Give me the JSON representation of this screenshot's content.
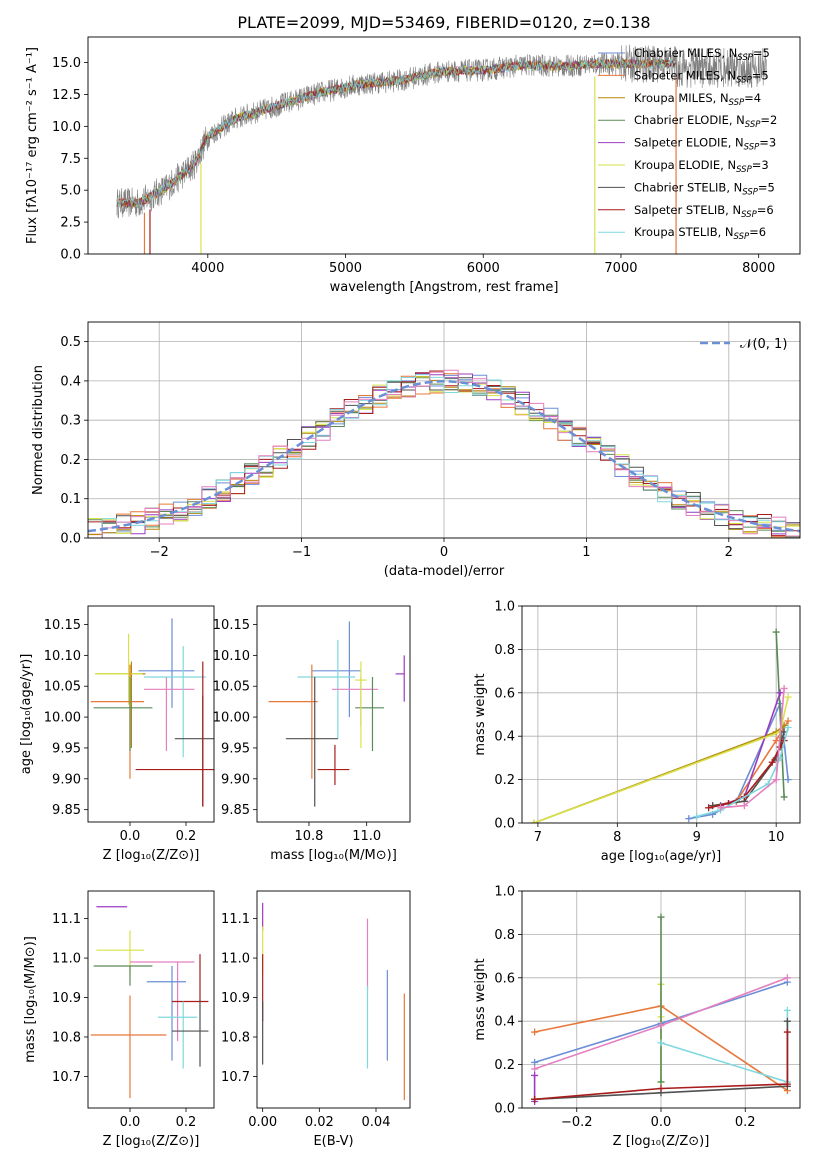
{
  "colors": {
    "Chabrier MILES": "#6a8fd6",
    "Salpeter MILES": "#e8773a",
    "Kroupa MILES": "#b5860a",
    "Chabrier ELODIE": "#5a8a56",
    "Salpeter ELODIE": "#9b3bc0",
    "Kroupa ELODIE": "#d7e24a",
    "Chabrier STELIB": "#505050",
    "Salpeter STELIB": "#a81c1c",
    "Kroupa STELIB": "#7fd8de",
    "pink": "#e47fc0",
    "gaussian": "#6a8fd6"
  },
  "chart_data": [
    {
      "id": "spectrum",
      "type": "line",
      "title": "PLATE=2099, MJD=53469, FIBERID=0120, z=0.138",
      "xlabel": "wavelength [Angstrom, rest frame]",
      "ylabel": "Flux [fλ10⁻¹⁷ erg cm⁻² s⁻¹ A⁻¹]",
      "xlim": [
        3130,
        8300
      ],
      "ylim": [
        0,
        17
      ],
      "xticks": [
        4000,
        5000,
        6000,
        7000,
        8000
      ],
      "yticks": [
        0.0,
        2.5,
        5.0,
        7.5,
        10.0,
        12.5,
        15.0
      ],
      "continuum": [
        [
          3340,
          4.0
        ],
        [
          3500,
          4.0
        ],
        [
          3700,
          5.2
        ],
        [
          3900,
          7.0
        ],
        [
          4000,
          9.2
        ],
        [
          4200,
          10.6
        ],
        [
          4500,
          11.6
        ],
        [
          4800,
          12.6
        ],
        [
          5100,
          13.3
        ],
        [
          5400,
          13.6
        ],
        [
          5700,
          14.3
        ],
        [
          6000,
          14.4
        ],
        [
          6300,
          14.8
        ],
        [
          6600,
          14.7
        ],
        [
          6800,
          14.9
        ],
        [
          7100,
          14.9
        ],
        [
          7400,
          14.9
        ]
      ],
      "legend_position": "top-right",
      "series": [
        {
          "name": "Chabrier MILES, N_SSP=5",
          "color_key": "Chabrier MILES"
        },
        {
          "name": "Salpeter MILES, N_SSP=5",
          "color_key": "Salpeter MILES"
        },
        {
          "name": "Kroupa MILES, N_SSP=4",
          "color_key": "Kroupa MILES"
        },
        {
          "name": "Chabrier ELODIE, N_SSP=2",
          "color_key": "Chabrier ELODIE"
        },
        {
          "name": "Salpeter ELODIE, N_SSP=3",
          "color_key": "Salpeter ELODIE"
        },
        {
          "name": "Kroupa ELODIE, N_SSP=3",
          "color_key": "Kroupa ELODIE"
        },
        {
          "name": "Chabrier STELIB, N_SSP=5",
          "color_key": "Chabrier STELIB"
        },
        {
          "name": "Salpeter STELIB, N_SSP=6",
          "color_key": "Salpeter STELIB"
        },
        {
          "name": "Kroupa STELIB, N_SSP=6",
          "color_key": "Kroupa STELIB"
        }
      ]
    },
    {
      "id": "residuals",
      "type": "histogram",
      "xlabel": "(data-model)/error",
      "ylabel": "Normed distribution",
      "xlim": [
        -2.5,
        2.5
      ],
      "ylim": [
        0,
        0.55
      ],
      "xticks": [
        -2,
        -1,
        0,
        1,
        2
      ],
      "yticks": [
        0.0,
        0.1,
        0.2,
        0.3,
        0.4,
        0.5
      ],
      "grid": true,
      "bin_width": 0.1,
      "gaussian_label": "𝒩(0, 1)",
      "legend_position": "top-right",
      "series_colors": [
        "Chabrier MILES",
        "Salpeter MILES",
        "Kroupa MILES",
        "Chabrier ELODIE",
        "Salpeter ELODIE",
        "Kroupa ELODIE",
        "Chabrier STELIB",
        "Salpeter STELIB",
        "Kroupa STELIB",
        "pink"
      ]
    },
    {
      "id": "age_vs_Z",
      "type": "errorbar",
      "xlabel": "Z [log₁₀(Z/Z⊙)]",
      "ylabel": "age  [log₁₀(age/yr)]",
      "xlim": [
        -0.15,
        0.3
      ],
      "ylim": [
        9.83,
        10.18
      ],
      "xticks": [
        0.0,
        0.2
      ],
      "yticks": [
        9.85,
        9.9,
        9.95,
        10.0,
        10.05,
        10.1,
        10.15
      ],
      "points": [
        {
          "c": "Chabrier MILES",
          "x": 0.15,
          "y": 10.075,
          "xerr": [
            0.12,
            0.08
          ],
          "yerr": [
            0.06,
            0.085
          ]
        },
        {
          "c": "Kroupa MILES",
          "x": 0.005,
          "y": 10.07,
          "xerr": [
            0.13,
            0.05
          ],
          "yerr": [
            0.12,
            0.02
          ]
        },
        {
          "c": "pink",
          "x": 0.13,
          "y": 10.045,
          "xerr": [
            0.08,
            0.1
          ],
          "yerr": [
            0.1,
            0.02
          ]
        },
        {
          "c": "Kroupa STELIB",
          "x": 0.19,
          "y": 10.065,
          "xerr": [
            0.14,
            0.08
          ],
          "yerr": [
            0.13,
            0.05
          ]
        },
        {
          "c": "Kroupa ELODIE",
          "x": -0.005,
          "y": 10.07,
          "xerr": [
            0.12,
            0.05
          ],
          "yerr": [
            0.05,
            0.065
          ]
        },
        {
          "c": "Salpeter MILES",
          "x": 0.0,
          "y": 10.025,
          "xerr": [
            0.14,
            0.05
          ],
          "yerr": [
            0.125,
            0.06
          ]
        },
        {
          "c": "Chabrier ELODIE",
          "x": 0.0,
          "y": 10.015,
          "xerr": [
            0.13,
            0.08
          ],
          "yerr": [
            0.07,
            0.05
          ]
        },
        {
          "c": "Chabrier STELIB",
          "x": 0.26,
          "y": 9.965,
          "xerr": [
            0.1,
            0.06
          ],
          "yerr": [
            0.11,
            0.07
          ]
        },
        {
          "c": "Salpeter STELIB",
          "x": 0.26,
          "y": 9.915,
          "xerr": [
            0.24,
            0.1
          ],
          "yerr": [
            0.06,
            0.175
          ]
        }
      ]
    },
    {
      "id": "age_vs_mass",
      "type": "errorbar",
      "xlabel": "mass [log₁₀(M/M⊙)]",
      "ylabel": "",
      "xlim": [
        10.62,
        11.15
      ],
      "ylim": [
        9.83,
        10.18
      ],
      "xticks": [
        10.8,
        11.0
      ],
      "yticks": [
        9.85,
        9.9,
        9.95,
        10.0,
        10.05,
        10.1,
        10.15
      ],
      "points": [
        {
          "c": "Chabrier MILES",
          "x": 10.94,
          "y": 10.075,
          "xerr": [
            0.13,
            0.04
          ],
          "yerr": [
            0.075,
            0.08
          ]
        },
        {
          "c": "Kroupa STELIB",
          "x": 10.9,
          "y": 10.065,
          "xerr": [
            0.14,
            0.06
          ],
          "yerr": [
            0.1,
            0.06
          ]
        },
        {
          "c": "pink",
          "x": 10.98,
          "y": 10.045,
          "xerr": [
            0.1,
            0.06
          ],
          "yerr": [
            0.06,
            0.02
          ]
        },
        {
          "c": "Salpeter ELODIE",
          "x": 11.13,
          "y": 10.07,
          "xerr": [
            0.03,
            0.0
          ],
          "yerr": [
            0.045,
            0.03
          ]
        },
        {
          "c": "Salpeter MILES",
          "x": 10.81,
          "y": 10.025,
          "xerr": [
            0.15,
            0.02
          ],
          "yerr": [
            0.125,
            0.06
          ]
        },
        {
          "c": "Chabrier ELODIE",
          "x": 11.02,
          "y": 10.015,
          "xerr": [
            0.06,
            0.04
          ],
          "yerr": [
            0.07,
            0.05
          ]
        },
        {
          "c": "Chabrier STELIB",
          "x": 10.82,
          "y": 9.965,
          "xerr": [
            0.1,
            0.08
          ],
          "yerr": [
            0.11,
            0.1
          ]
        },
        {
          "c": "Salpeter STELIB",
          "x": 10.89,
          "y": 9.915,
          "xerr": [
            0.06,
            0.05
          ],
          "yerr": [
            0.025,
            0.04
          ]
        },
        {
          "c": "Kroupa ELODIE",
          "x": 10.98,
          "y": 10.06,
          "xerr": [
            0.02,
            0.02
          ],
          "yerr": [
            0.11,
            0.03
          ]
        }
      ]
    },
    {
      "id": "massweight_vs_age",
      "type": "line",
      "xlabel": "age  [log₁₀(age/yr)]",
      "ylabel": "mass weight",
      "xlim": [
        6.8,
        10.3
      ],
      "ylim": [
        0,
        1.0
      ],
      "xticks": [
        7,
        8,
        9,
        10
      ],
      "yticks": [
        0.0,
        0.2,
        0.4,
        0.6,
        0.8,
        1.0
      ],
      "grid": true,
      "series": [
        {
          "c": "Chabrier MILES",
          "x": [
            8.9,
            9.2,
            9.5,
            10.05,
            10.15
          ],
          "y": [
            0.02,
            0.04,
            0.1,
            0.55,
            0.2
          ]
        },
        {
          "c": "Salpeter MILES",
          "x": [
            9.2,
            9.5,
            10.0,
            10.15
          ],
          "y": [
            0.08,
            0.1,
            0.38,
            0.47
          ]
        },
        {
          "c": "Kroupa MILES",
          "x": [
            6.95,
            10.0,
            10.1
          ],
          "y": [
            0.0,
            0.42,
            0.45
          ]
        },
        {
          "c": "Chabrier ELODIE",
          "x": [
            10.0,
            10.1
          ],
          "y": [
            0.88,
            0.12
          ]
        },
        {
          "c": "Salpeter ELODIE",
          "x": [
            9.3,
            9.6,
            10.05
          ],
          "y": [
            0.08,
            0.12,
            0.6
          ]
        },
        {
          "c": "Kroupa ELODIE",
          "x": [
            6.95,
            10.05,
            10.15
          ],
          "y": [
            0.0,
            0.42,
            0.58
          ]
        },
        {
          "c": "Chabrier STELIB",
          "x": [
            9.2,
            9.4,
            9.6,
            10.0,
            10.1
          ],
          "y": [
            0.08,
            0.09,
            0.1,
            0.3,
            0.42
          ]
        },
        {
          "c": "Salpeter STELIB",
          "x": [
            9.15,
            9.4,
            9.6,
            9.95,
            10.05,
            10.1
          ],
          "y": [
            0.07,
            0.09,
            0.12,
            0.28,
            0.35,
            0.38
          ]
        },
        {
          "c": "Kroupa STELIB",
          "x": [
            9.0,
            9.3,
            9.9,
            10.05,
            10.15
          ],
          "y": [
            0.03,
            0.06,
            0.18,
            0.3,
            0.44
          ]
        },
        {
          "c": "pink",
          "x": [
            9.3,
            9.6,
            10.0,
            10.1
          ],
          "y": [
            0.07,
            0.08,
            0.2,
            0.62
          ]
        }
      ]
    },
    {
      "id": "mass_vs_Z",
      "type": "errorbar",
      "xlabel": "Z [log₁₀(Z/Z⊙)]",
      "ylabel": "mass [log₁₀(M/M⊙)]",
      "xlim": [
        -0.15,
        0.3
      ],
      "ylim": [
        10.62,
        11.17
      ],
      "xticks": [
        0.0,
        0.2
      ],
      "yticks": [
        10.7,
        10.8,
        10.9,
        11.0,
        11.1
      ],
      "points": [
        {
          "c": "Salpeter ELODIE",
          "x": -0.06,
          "y": 11.13,
          "xerr": [
            0.06,
            0.05
          ],
          "yerr": [
            0.0,
            0.0
          ]
        },
        {
          "c": "Kroupa ELODIE",
          "x": 0.0,
          "y": 11.02,
          "xerr": [
            0.12,
            0.05
          ],
          "yerr": [
            0.06,
            0.05
          ]
        },
        {
          "c": "pink",
          "x": 0.17,
          "y": 10.99,
          "xerr": [
            0.17,
            0.06
          ],
          "yerr": [
            0.2,
            0.0
          ]
        },
        {
          "c": "Chabrier ELODIE",
          "x": 0.0,
          "y": 10.98,
          "xerr": [
            0.13,
            0.08
          ],
          "yerr": [
            0.05,
            0.0
          ]
        },
        {
          "c": "Chabrier MILES",
          "x": 0.15,
          "y": 10.94,
          "xerr": [
            0.09,
            0.05
          ],
          "yerr": [
            0.2,
            0.04
          ]
        },
        {
          "c": "Salpeter STELIB",
          "x": 0.25,
          "y": 10.89,
          "xerr": [
            0.1,
            0.03
          ],
          "yerr": [
            0.0,
            0.12
          ]
        },
        {
          "c": "Kroupa STELIB",
          "x": 0.19,
          "y": 10.85,
          "xerr": [
            0.09,
            0.05
          ],
          "yerr": [
            0.13,
            0.04
          ]
        },
        {
          "c": "Chabrier STELIB",
          "x": 0.25,
          "y": 10.815,
          "xerr": [
            0.1,
            0.03
          ],
          "yerr": [
            0.09,
            0.08
          ]
        },
        {
          "c": "Salpeter MILES",
          "x": 0.0,
          "y": 10.805,
          "xerr": [
            0.14,
            0.13
          ],
          "yerr": [
            0.16,
            0.1
          ]
        }
      ]
    },
    {
      "id": "mass_vs_EBV",
      "type": "errorbar",
      "xlabel": "E(B-V)",
      "ylabel": "",
      "xlim": [
        -0.002,
        0.052
      ],
      "ylim": [
        10.62,
        11.17
      ],
      "xticks": [
        0.0,
        0.02,
        0.04
      ],
      "yticks": [
        10.7,
        10.8,
        10.9,
        11.0,
        11.1
      ],
      "points": [
        {
          "c": "Salpeter ELODIE",
          "x": 0.0,
          "y": 11.1,
          "xerr": [
            0,
            0
          ],
          "yerr": [
            0.03,
            0.04
          ]
        },
        {
          "c": "Kroupa ELODIE",
          "x": 0.0,
          "y": 11.02,
          "xerr": [
            0,
            0
          ],
          "yerr": [
            0.06,
            0.06
          ]
        },
        {
          "c": "Salpeter STELIB",
          "x": 0.0,
          "y": 10.92,
          "xerr": [
            0,
            0
          ],
          "yerr": [
            0.08,
            0.09
          ]
        },
        {
          "c": "Chabrier STELIB",
          "x": 0.0,
          "y": 10.81,
          "xerr": [
            0,
            0
          ],
          "yerr": [
            0.08,
            0.08
          ]
        },
        {
          "c": "pink",
          "x": 0.037,
          "y": 11.0,
          "xerr": [
            0,
            0
          ],
          "yerr": [
            0.08,
            0.1
          ]
        },
        {
          "c": "Kroupa STELIB",
          "x": 0.037,
          "y": 10.83,
          "xerr": [
            0,
            0
          ],
          "yerr": [
            0.11,
            0.1
          ]
        },
        {
          "c": "Chabrier MILES",
          "x": 0.044,
          "y": 10.92,
          "xerr": [
            0,
            0
          ],
          "yerr": [
            0.18,
            0.05
          ]
        },
        {
          "c": "Salpeter MILES",
          "x": 0.05,
          "y": 10.77,
          "xerr": [
            0,
            0
          ],
          "yerr": [
            0.13,
            0.14
          ]
        }
      ]
    },
    {
      "id": "massweight_vs_Z",
      "type": "line",
      "xlabel": "Z [log₁₀(Z/Z⊙)]",
      "ylabel": "mass weight",
      "xlim": [
        -0.33,
        0.33
      ],
      "ylim": [
        0,
        1.0
      ],
      "xticks": [
        -0.2,
        0.0,
        0.2
      ],
      "yticks": [
        0.0,
        0.2,
        0.4,
        0.6,
        0.8,
        1.0
      ],
      "grid": true,
      "series": [
        {
          "c": "Chabrier MILES",
          "x": [
            -0.3,
            0.0,
            0.3
          ],
          "y": [
            0.21,
            0.39,
            0.58
          ]
        },
        {
          "c": "Salpeter MILES",
          "x": [
            -0.3,
            0.0,
            0.3
          ],
          "y": [
            0.35,
            0.47,
            0.08
          ]
        },
        {
          "c": "Kroupa ELODIE",
          "x": [
            0.0,
            0.0,
            0.0
          ],
          "y": [
            0.12,
            0.42,
            0.57
          ]
        },
        {
          "c": "Chabrier ELODIE",
          "x": [
            0.0,
            0.0
          ],
          "y": [
            0.88,
            0.12
          ]
        },
        {
          "c": "Kroupa STELIB",
          "x": [
            0.0,
            0.3,
            0.3
          ],
          "y": [
            0.3,
            0.12,
            0.45
          ]
        },
        {
          "c": "pink",
          "x": [
            -0.3,
            0.0,
            0.3
          ],
          "y": [
            0.18,
            0.38,
            0.6
          ]
        },
        {
          "c": "Salpeter ELODIE",
          "x": [
            -0.3,
            -0.3
          ],
          "y": [
            0.03,
            0.15
          ]
        },
        {
          "c": "Chabrier STELIB",
          "x": [
            -0.3,
            0.0,
            0.3,
            0.3
          ],
          "y": [
            0.04,
            0.07,
            0.1,
            0.4
          ]
        },
        {
          "c": "Salpeter STELIB",
          "x": [
            -0.3,
            0.0,
            0.3,
            0.3
          ],
          "y": [
            0.04,
            0.09,
            0.11,
            0.35
          ]
        }
      ]
    }
  ]
}
